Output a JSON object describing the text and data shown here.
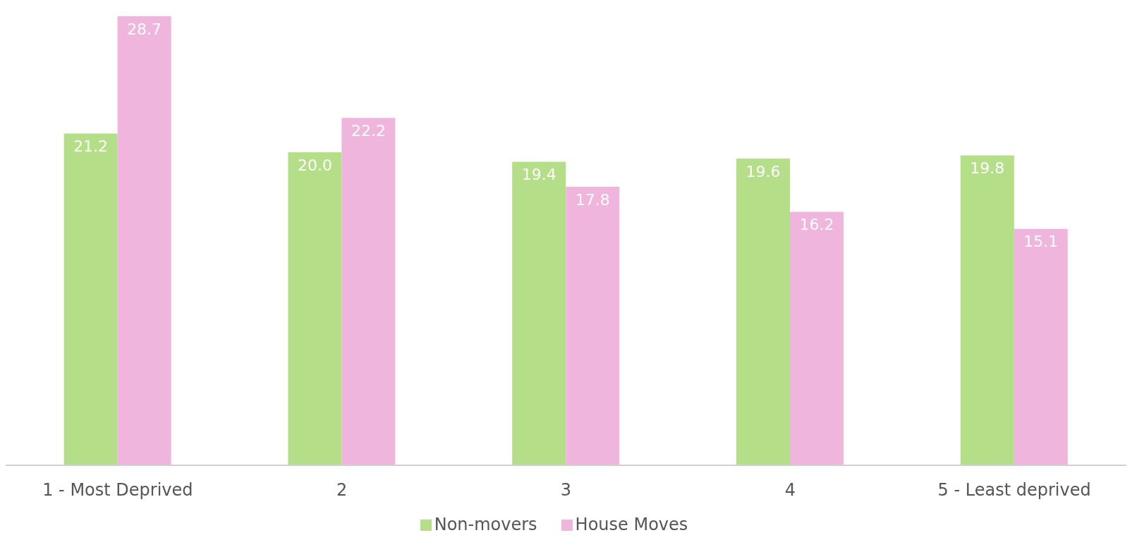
{
  "chart_data": {
    "type": "bar",
    "categories": [
      "1 - Most Deprived",
      "2",
      "3",
      "4",
      "5 - Least deprived"
    ],
    "series": [
      {
        "name": "Non-movers",
        "color": "#b5de89",
        "values": [
          21.2,
          20.0,
          19.4,
          19.6,
          19.8
        ],
        "value_labels": [
          "21.2",
          "20.0",
          "19.4",
          "19.6",
          "19.8"
        ]
      },
      {
        "name": "House Moves",
        "color": "#f0b5dc",
        "values": [
          28.7,
          22.2,
          17.8,
          16.2,
          15.1
        ],
        "value_labels": [
          "28.7",
          "22.2",
          "17.8",
          "16.2",
          "15.1"
        ]
      }
    ],
    "legend": "bottom",
    "grid": false
  }
}
